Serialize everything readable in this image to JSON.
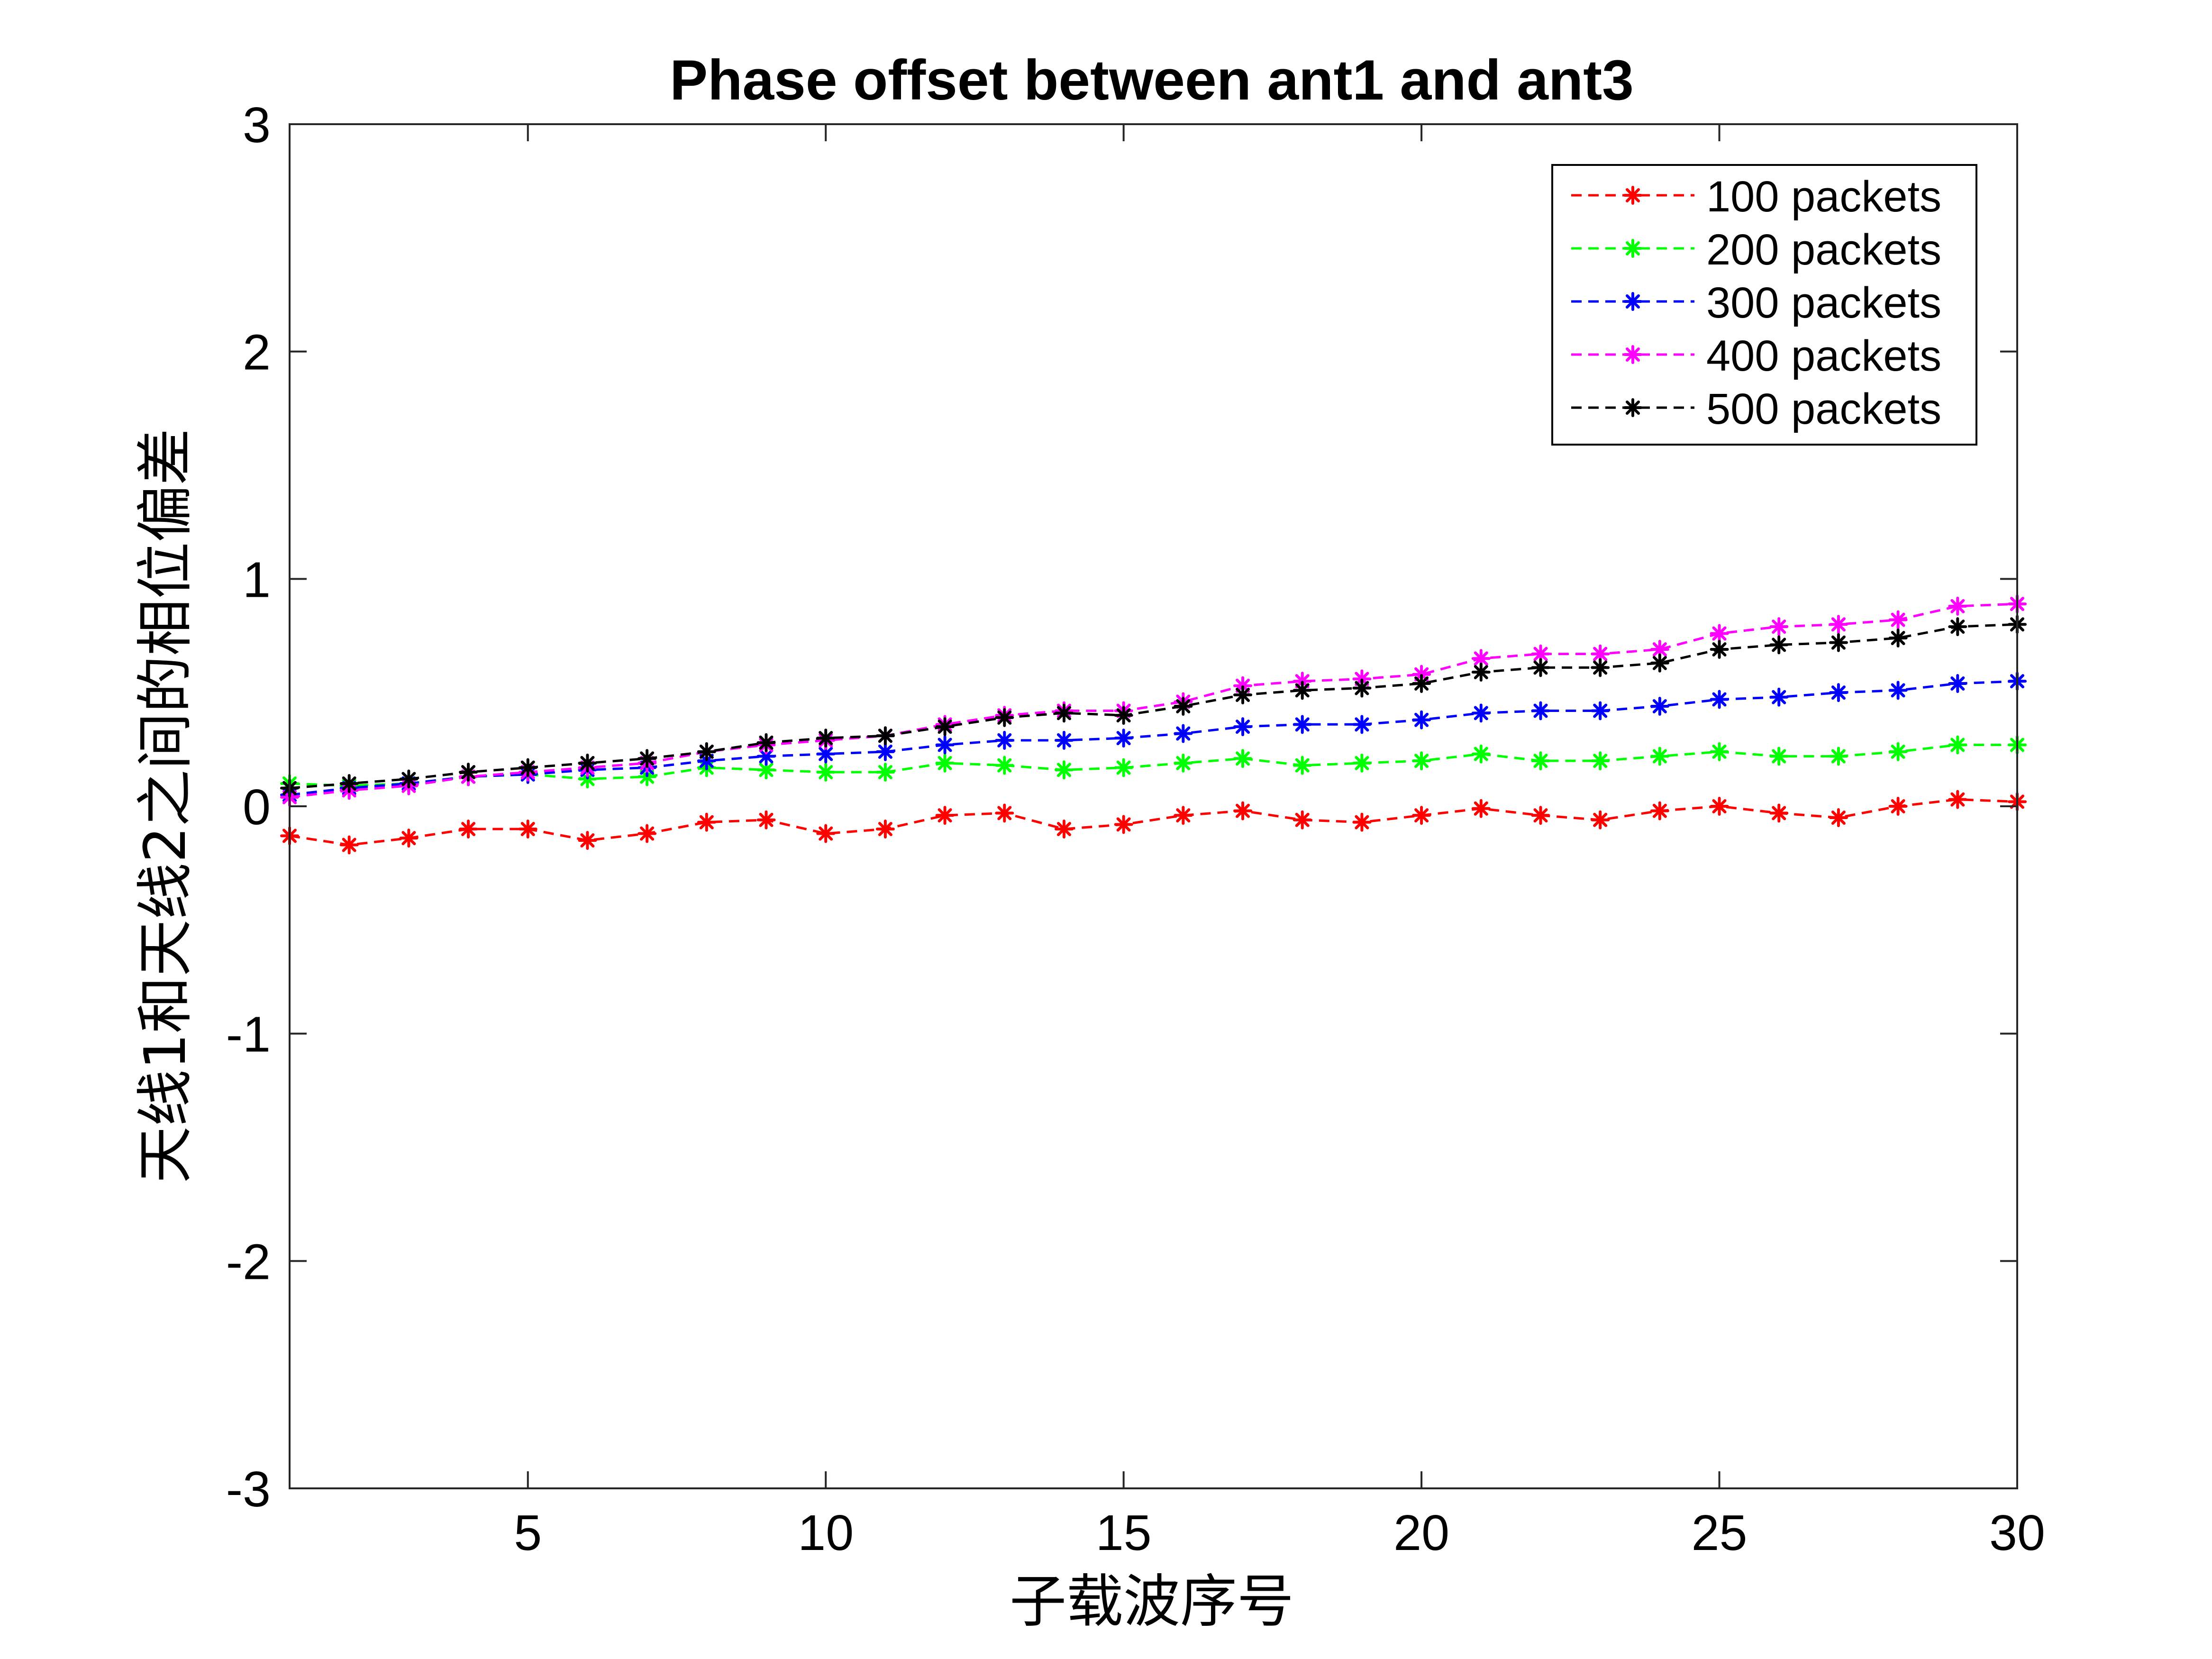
{
  "chart_data": {
    "type": "line",
    "title": "Phase offset between ant1 and ant3",
    "xlabel": "子载波序号",
    "ylabel": "天线1和天线2之间的相位偏差",
    "xlim": [
      1,
      30
    ],
    "ylim": [
      -3,
      3
    ],
    "xticks": [
      5,
      10,
      15,
      20,
      25,
      30
    ],
    "xtick_labels": [
      "5",
      "10",
      "15",
      "20",
      "25",
      "30"
    ],
    "yticks": [
      -3,
      -2,
      -1,
      0,
      1,
      2,
      3
    ],
    "ytick_labels": [
      "-3",
      "-2",
      "-1",
      "0",
      "1",
      "2",
      "3"
    ],
    "grid": false,
    "legend_position": "top-right",
    "x": [
      1,
      2,
      3,
      4,
      5,
      6,
      7,
      8,
      9,
      10,
      11,
      12,
      13,
      14,
      15,
      16,
      17,
      18,
      19,
      20,
      21,
      22,
      23,
      24,
      25,
      26,
      27,
      28,
      29,
      30
    ],
    "series": [
      {
        "name": "100 packets",
        "color": "#ff0000",
        "values": [
          -0.13,
          -0.17,
          -0.14,
          -0.1,
          -0.1,
          -0.15,
          -0.12,
          -0.07,
          -0.06,
          -0.12,
          -0.1,
          -0.04,
          -0.03,
          -0.1,
          -0.08,
          -0.04,
          -0.02,
          -0.06,
          -0.07,
          -0.04,
          -0.01,
          -0.04,
          -0.06,
          -0.02,
          0.0,
          -0.03,
          -0.05,
          0.0,
          0.03,
          0.02
        ]
      },
      {
        "name": "200 packets",
        "color": "#00ff00",
        "values": [
          0.1,
          0.09,
          0.1,
          0.13,
          0.14,
          0.12,
          0.13,
          0.17,
          0.16,
          0.15,
          0.15,
          0.19,
          0.18,
          0.16,
          0.17,
          0.19,
          0.21,
          0.18,
          0.19,
          0.2,
          0.23,
          0.2,
          0.2,
          0.22,
          0.24,
          0.22,
          0.22,
          0.24,
          0.27,
          0.27
        ]
      },
      {
        "name": "300 packets",
        "color": "#0000ff",
        "values": [
          0.05,
          0.08,
          0.1,
          0.13,
          0.14,
          0.16,
          0.17,
          0.2,
          0.22,
          0.23,
          0.24,
          0.27,
          0.29,
          0.29,
          0.3,
          0.32,
          0.35,
          0.36,
          0.36,
          0.38,
          0.41,
          0.42,
          0.42,
          0.44,
          0.47,
          0.48,
          0.5,
          0.51,
          0.54,
          0.55
        ]
      },
      {
        "name": "400 packets",
        "color": "#ff00ff",
        "values": [
          0.04,
          0.07,
          0.09,
          0.13,
          0.15,
          0.17,
          0.19,
          0.24,
          0.27,
          0.29,
          0.31,
          0.36,
          0.4,
          0.42,
          0.42,
          0.46,
          0.53,
          0.55,
          0.56,
          0.58,
          0.65,
          0.67,
          0.67,
          0.69,
          0.76,
          0.79,
          0.8,
          0.82,
          0.88,
          0.89
        ]
      },
      {
        "name": "500 packets",
        "color": "#000000",
        "values": [
          0.08,
          0.1,
          0.12,
          0.15,
          0.17,
          0.19,
          0.21,
          0.24,
          0.28,
          0.3,
          0.31,
          0.35,
          0.39,
          0.41,
          0.4,
          0.44,
          0.49,
          0.51,
          0.52,
          0.54,
          0.59,
          0.61,
          0.61,
          0.63,
          0.69,
          0.71,
          0.72,
          0.74,
          0.79,
          0.8
        ]
      }
    ]
  }
}
